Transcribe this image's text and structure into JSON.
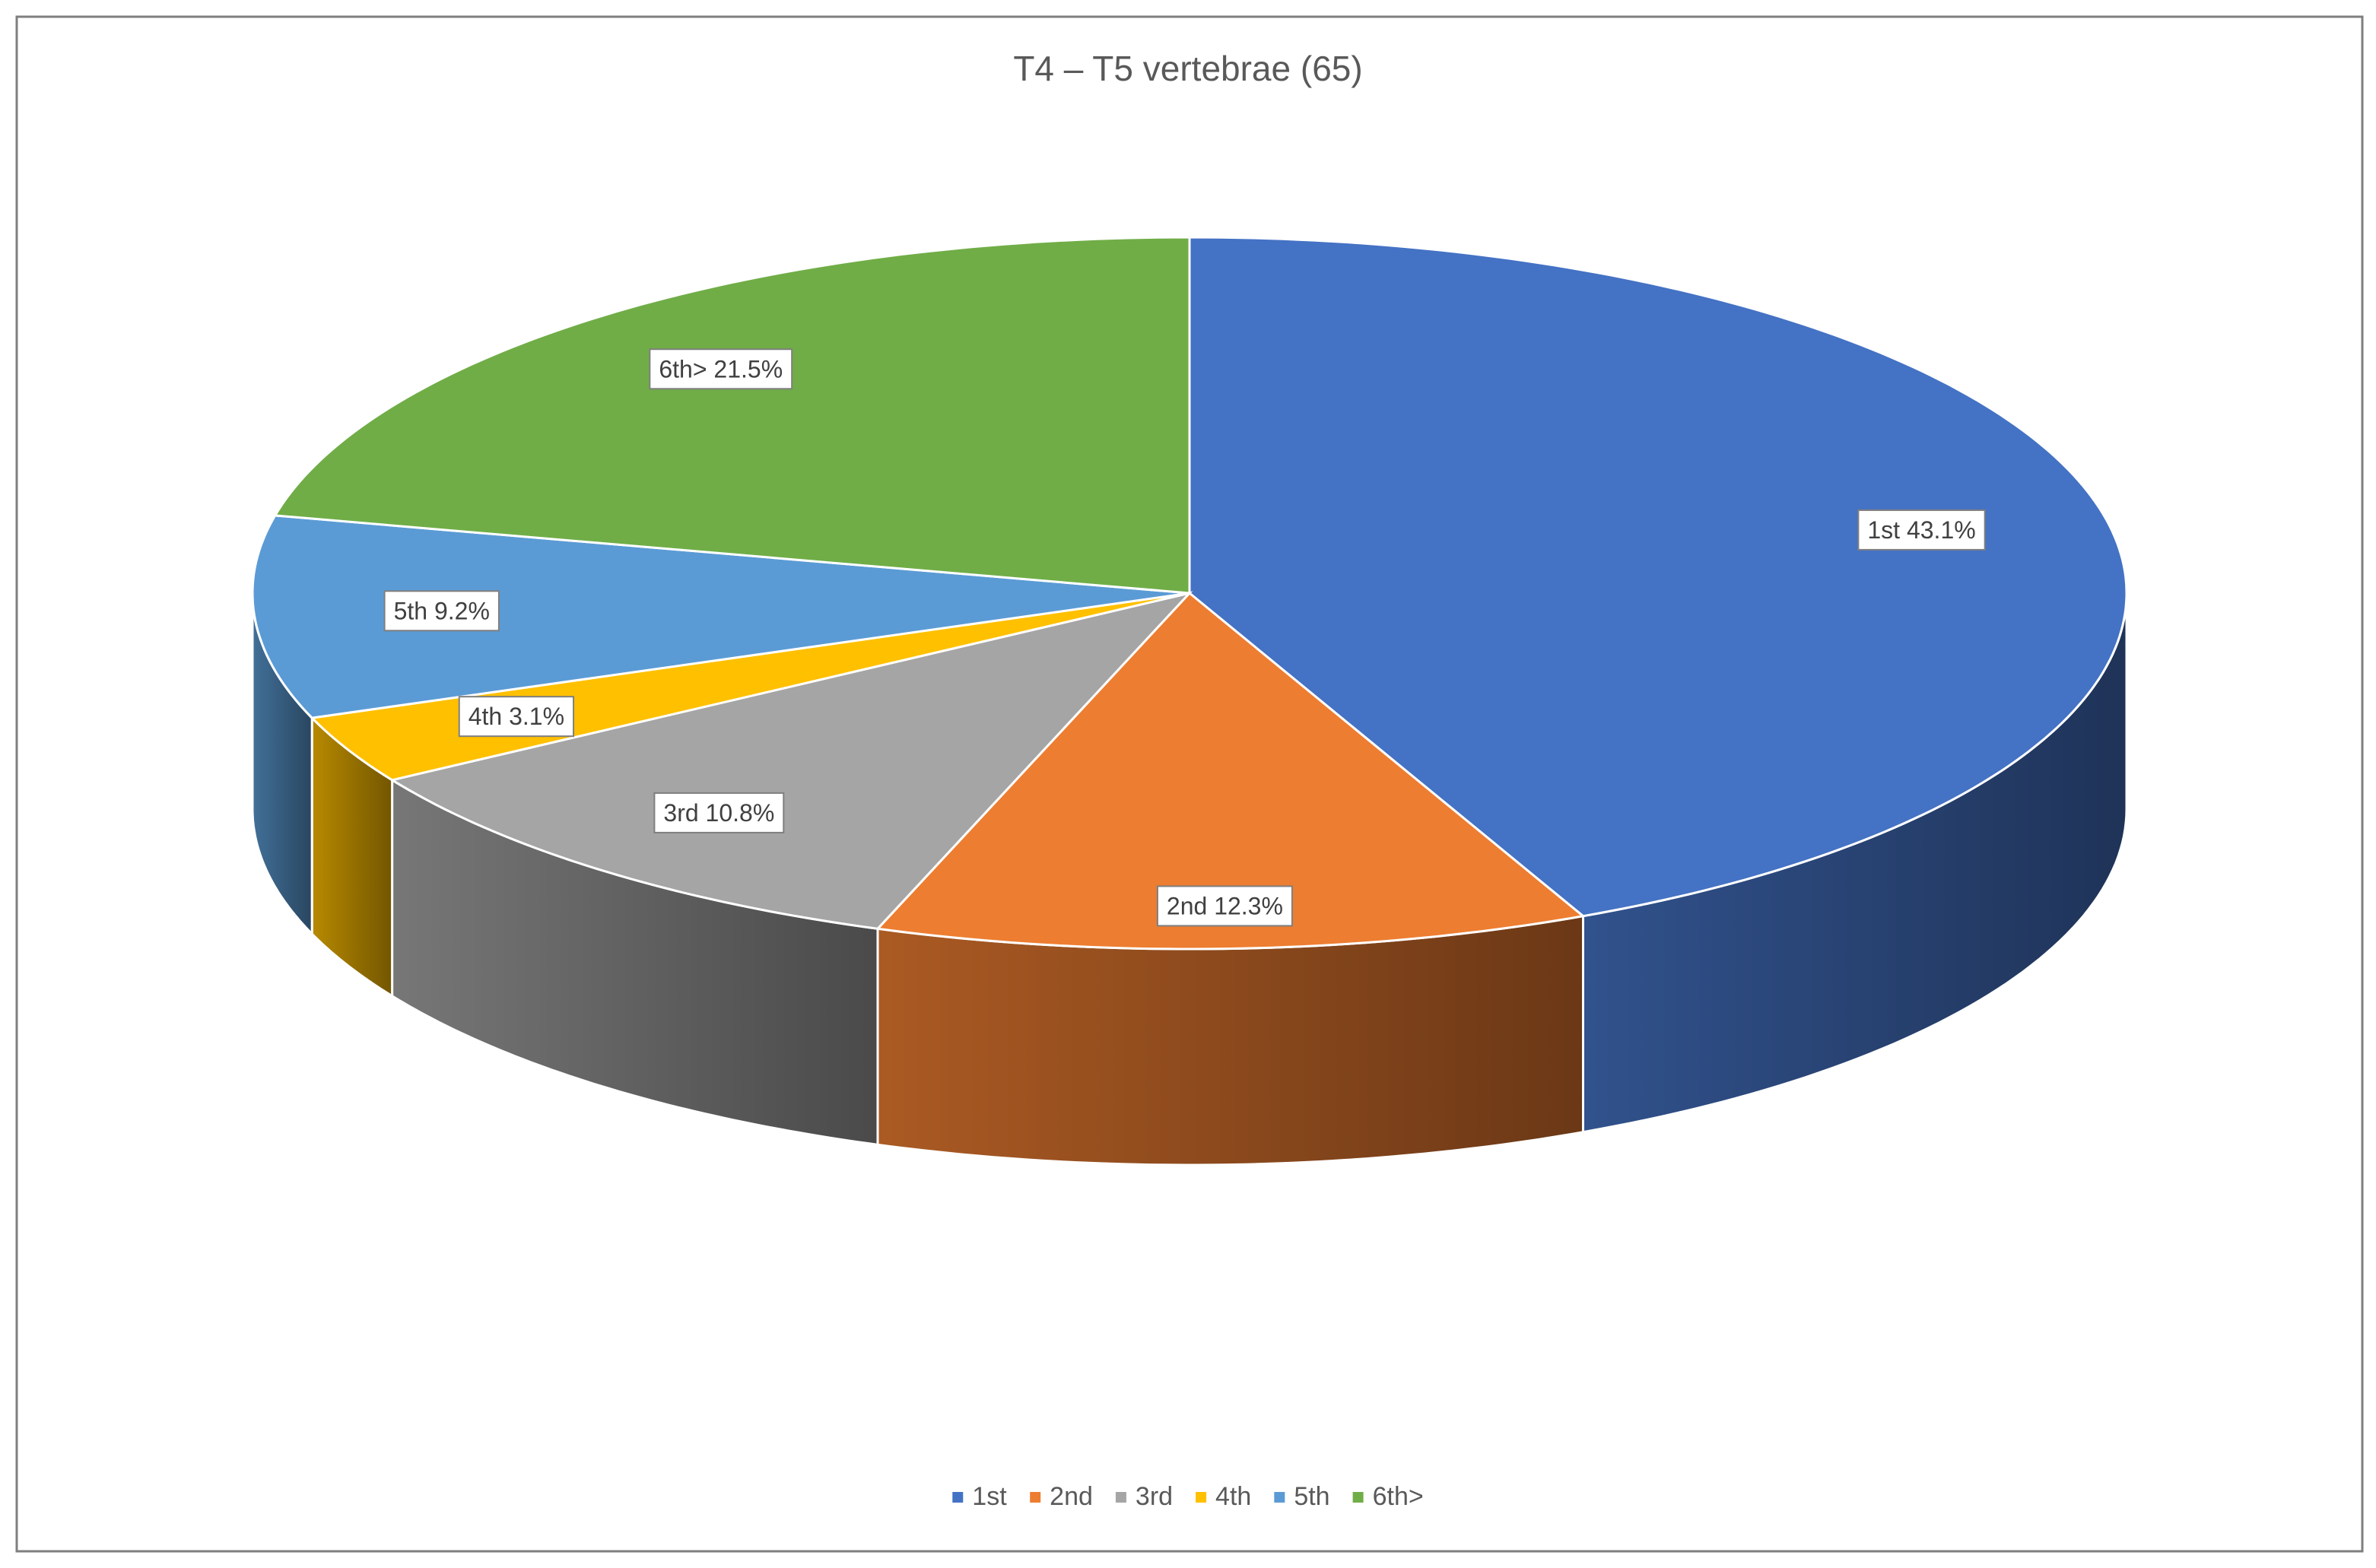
{
  "chart_data": {
    "type": "pie",
    "title": "T4 – T5 vertebrae (65)",
    "categories": [
      "1st",
      "2nd",
      "3rd",
      "4th",
      "5th",
      "6th>"
    ],
    "values": [
      43.1,
      12.3,
      10.8,
      3.1,
      9.2,
      21.5
    ],
    "value_labels": [
      "1st 43.1%",
      "2nd 12.3%",
      "3rd 10.8%",
      "4th 3.1%",
      "5th 9.2%",
      "6th> 21.5%"
    ],
    "colors": [
      "#4472c4",
      "#ed7d31",
      "#a5a5a5",
      "#ffc000",
      "#5b9bd5",
      "#70ad47"
    ],
    "legend": "bottom"
  }
}
